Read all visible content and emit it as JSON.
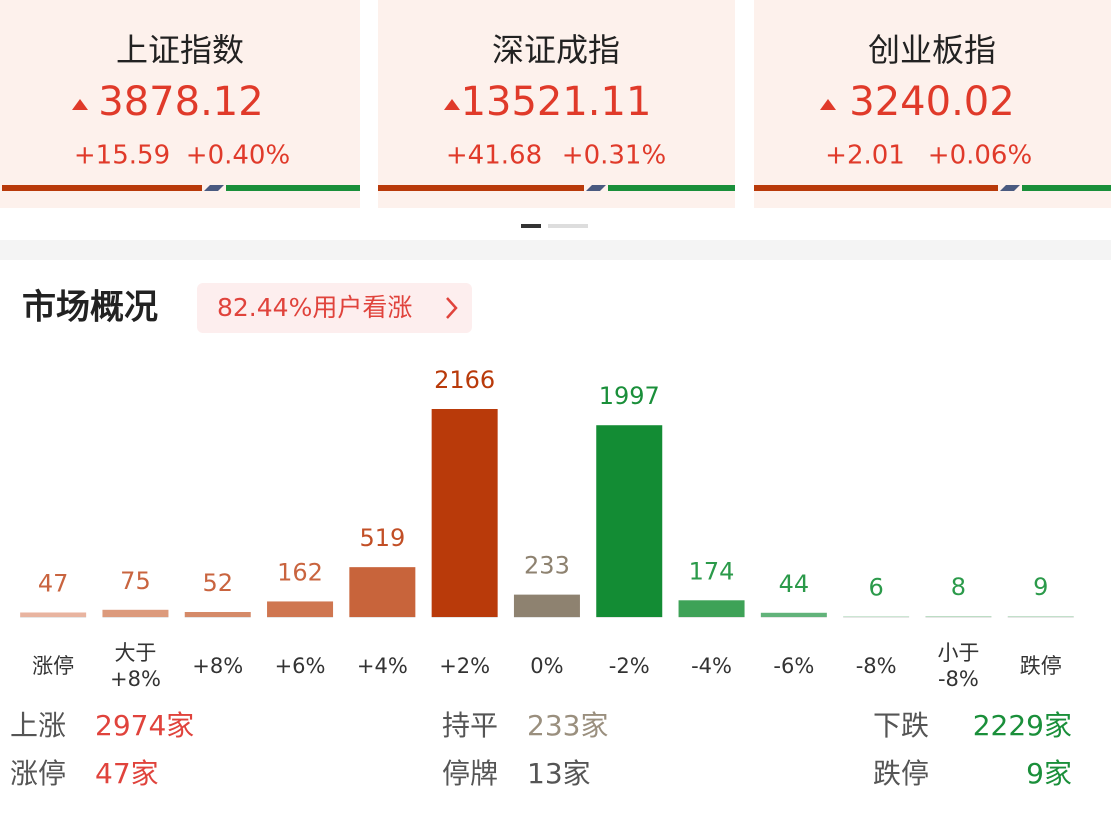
{
  "indices": [
    {
      "name": "上证指数",
      "value": "3878.12",
      "change": "+15.59",
      "percent": "+0.40%"
    },
    {
      "name": "深证成指",
      "value": "13521.11",
      "change": "+41.68",
      "percent": "+0.31%"
    },
    {
      "name": "创业板指",
      "value": "3240.02",
      "change": "+2.01",
      "percent": "+0.06%"
    }
  ],
  "market": {
    "title": "市场概况",
    "sentiment": "82.44%用户看涨"
  },
  "chart_data": {
    "type": "bar",
    "categories": [
      "涨停",
      "大于\n+8%",
      "+8%",
      "+6%",
      "+4%",
      "+2%",
      "0%",
      "-2%",
      "-4%",
      "-6%",
      "-8%",
      "小于\n-8%",
      "跌停"
    ],
    "values": [
      47,
      75,
      52,
      162,
      519,
      2166,
      233,
      1997,
      174,
      44,
      6,
      8,
      9
    ],
    "colors": [
      "#e8b4a0",
      "#dc9a7c",
      "#d58a68",
      "#cf7650",
      "#c8643b",
      "#b93a0a",
      "#8e8270",
      "#138c34",
      "#3ea257",
      "#62b37a",
      "#a7d3b3",
      "#a7d3b3",
      "#b8dcc2"
    ],
    "label_colors": [
      "#c9643f",
      "#c9643f",
      "#c9643f",
      "#c9643f",
      "#c24f26",
      "#b93a0a",
      "#8e8270",
      "#1a8f3a",
      "#2b9a4a",
      "#2b9a4a",
      "#2b9a4a",
      "#2b9a4a",
      "#2b9a4a"
    ]
  },
  "summary": [
    [
      {
        "label": "上涨",
        "value": "2974家"
      },
      {
        "label": "持平",
        "value": "233家"
      },
      {
        "label": "下跌",
        "value": "2229家"
      }
    ],
    [
      {
        "label": "涨停",
        "value": "47家"
      },
      {
        "label": "停牌",
        "value": "13家"
      },
      {
        "label": "跌停",
        "value": "9家"
      }
    ]
  ]
}
